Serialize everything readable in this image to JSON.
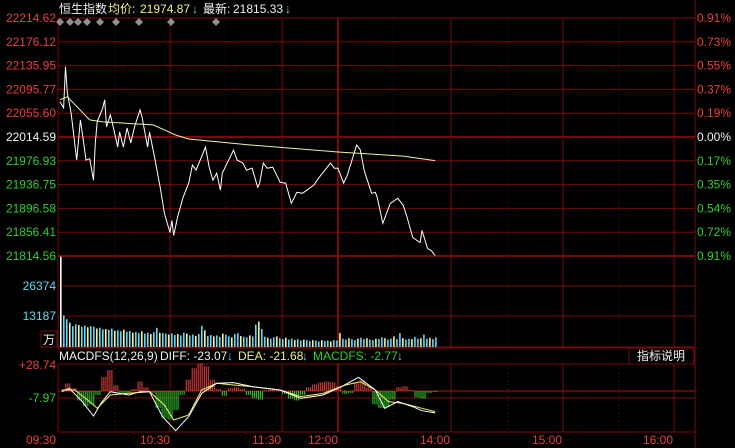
{
  "header": {
    "name": "恒生指数",
    "avg_label": "均价:",
    "avg_value": "21974.87",
    "avg_arrow": "↓",
    "last_label": "最新:",
    "last_value": "21815.33",
    "last_arrow": "↓"
  },
  "price_axis": {
    "left_labels": [
      "22214.62",
      "22176.12",
      "22135.95",
      "22095.77",
      "22055.60",
      "22014.59",
      "21976.93",
      "21936.75",
      "21896.58",
      "21856.41",
      "21814.56"
    ],
    "right_labels": [
      "0.91%",
      "0.73%",
      "0.55%",
      "0.37%",
      "0.19%",
      "0.00%",
      "0.17%",
      "0.35%",
      "0.54%",
      "0.72%",
      "0.91%"
    ],
    "prev_close": 22014.59,
    "range": [
      21814.56,
      22214.62
    ]
  },
  "volume_axis": {
    "labels": [
      "26374",
      "13187"
    ],
    "unit": "万",
    "max": 39561
  },
  "macd": {
    "title": "MACDFS(12,26,9)",
    "diff_label": "DIFF: -23.07",
    "diff_arrow": "↓",
    "dea_label": "DEA: -21.68",
    "dea_arrow": "↓",
    "macdfs_label": "MACDFS: -2.77",
    "macdfs_arrow": "↓",
    "axis_labels": [
      "+28.74",
      "-7.97"
    ],
    "help_button": "指标说明"
  },
  "time_axis": [
    "09:30",
    "10:30",
    "11:30",
    "12:00",
    "14:00",
    "15:00",
    "16:00"
  ],
  "colors": {
    "background": "#000000",
    "grid": "#7a0a0a",
    "price_line": "#ffffff",
    "avg_line": "#f0f0a0",
    "up": "#e84040",
    "down": "#30d030",
    "volume_a": "#60d8f0",
    "volume_b": "#f0f0a0"
  },
  "chart_data": {
    "type": "line",
    "price": [
      [
        "09:31",
        22073.7
      ],
      [
        "09:33",
        22063.6
      ],
      [
        "09:34",
        22132.8
      ],
      [
        "09:35",
        22088.9
      ],
      [
        "09:37",
        22055.1
      ],
      [
        "09:40",
        21975.8
      ],
      [
        "09:42",
        22043.3
      ],
      [
        "09:43",
        22021.4
      ],
      [
        "09:45",
        21975.8
      ],
      [
        "09:47",
        21978.0
      ],
      [
        "09:49",
        21942.0
      ],
      [
        "09:50",
        22004.5
      ],
      [
        "09:51",
        22039.9
      ],
      [
        "09:54",
        22063.6
      ],
      [
        "09:55",
        22077.1
      ],
      [
        "09:56",
        22031.5
      ],
      [
        "09:58",
        22051.8
      ],
      [
        "09:59",
        22039.9
      ],
      [
        "10:02",
        21997.7
      ],
      [
        "10:03",
        22023.0
      ],
      [
        "10:05",
        21997.7
      ],
      [
        "10:07",
        22029.8
      ],
      [
        "10:09",
        22004.5
      ],
      [
        "10:11",
        22031.5
      ],
      [
        "10:14",
        22060.2
      ],
      [
        "10:15",
        22048.4
      ],
      [
        "10:18",
        21997.7
      ],
      [
        "10:19",
        22023.0
      ],
      [
        "10:22",
        21975.8
      ],
      [
        "10:25",
        21925.1
      ],
      [
        "10:27",
        21886.2
      ],
      [
        "10:30",
        21854.1
      ],
      [
        "10:31",
        21874.4
      ],
      [
        "10:32",
        21849.1
      ],
      [
        "10:34",
        21879.5
      ],
      [
        "10:37",
        21913.3
      ],
      [
        "10:40",
        21936.9
      ],
      [
        "10:42",
        21967.3
      ],
      [
        "10:44",
        21958.9
      ],
      [
        "10:49",
        21997.7
      ],
      [
        "10:51",
        21963.9
      ],
      [
        "10:53",
        21942.0
      ],
      [
        "10:55",
        21953.8
      ],
      [
        "10:57",
        21925.1
      ],
      [
        "10:58",
        21953.8
      ],
      [
        "11:04",
        21992.6
      ],
      [
        "11:06",
        21975.8
      ],
      [
        "11:09",
        21970.7
      ],
      [
        "11:11",
        21958.9
      ],
      [
        "11:14",
        21962.2
      ],
      [
        "11:17",
        21930.1
      ],
      [
        "11:18",
        21936.9
      ],
      [
        "11:20",
        21970.7
      ],
      [
        "11:22",
        21962.2
      ],
      [
        "11:25",
        21963.9
      ],
      [
        "11:29",
        21938.6
      ],
      [
        "11:32",
        21936.9
      ],
      [
        "11:35",
        21903.1
      ],
      [
        "11:38",
        21921.7
      ],
      [
        "11:41",
        21920.0
      ],
      [
        "11:47",
        21933.5
      ],
      [
        "11:50",
        21947.0
      ],
      [
        "11:56",
        21970.7
      ],
      [
        "11:58",
        21962.2
      ],
      [
        "13:00",
        21962.2
      ],
      [
        "13:03",
        21936.9
      ],
      [
        "13:05",
        21950.4
      ],
      [
        "13:08",
        21980.8
      ],
      [
        "13:10",
        22001.1
      ],
      [
        "13:12",
        21992.6
      ],
      [
        "13:14",
        21958.9
      ],
      [
        "13:18",
        21920.0
      ],
      [
        "13:20",
        21921.7
      ],
      [
        "13:21",
        21913.3
      ],
      [
        "13:24",
        21869.3
      ],
      [
        "13:28",
        21903.1
      ],
      [
        "13:32",
        21911.6
      ],
      [
        "13:35",
        21899.7
      ],
      [
        "13:37",
        21879.5
      ],
      [
        "13:40",
        21845.7
      ],
      [
        "13:44",
        21837.3
      ],
      [
        "13:45",
        21857.5
      ],
      [
        "13:48",
        21827.1
      ],
      [
        "13:50",
        21823.7
      ],
      [
        "13:52",
        21815.33
      ]
    ],
    "average": [
      [
        "09:31",
        22077.1
      ],
      [
        "09:35",
        22082.2
      ],
      [
        "09:47",
        22043.3
      ],
      [
        "09:54",
        22039.9
      ],
      [
        "10:21",
        22034.9
      ],
      [
        "10:33",
        22018.0
      ],
      [
        "10:40",
        22011.2
      ],
      [
        "11:13",
        22001.1
      ],
      [
        "13:00",
        21989.3
      ],
      [
        "13:35",
        21982.5
      ],
      [
        "13:52",
        21974.87
      ]
    ],
    "volume": {
      "start": "09:30",
      "end": "13:52",
      "values": [
        39100,
        13600,
        12000,
        10500,
        9000,
        9800,
        9500,
        8800,
        9200,
        8500,
        9000,
        8800,
        8000,
        8400,
        7600,
        7800,
        7500,
        8000,
        7000,
        7200,
        6800,
        7500,
        6600,
        6900,
        6200,
        6500,
        6000,
        6800,
        5800,
        6200,
        5600,
        6400,
        8300,
        6200,
        6000,
        5800,
        5400,
        5900,
        5200,
        5600,
        5000,
        6200,
        5800,
        5000,
        5400,
        4800,
        5600,
        9200,
        7200,
        4800,
        5200,
        4600,
        5000,
        4400,
        5800,
        5200,
        4600,
        4200,
        5600,
        6000,
        4800,
        4400,
        4200,
        5000,
        4600,
        9700,
        11000,
        7800,
        4400,
        4000,
        3600,
        4200,
        4600,
        3800,
        3400,
        4000,
        3200,
        3600,
        3000,
        3400,
        2800,
        3200,
        3000,
        2600,
        3000,
        2800,
        2400,
        3000,
        2600,
        2800,
        2400,
        3000,
        2800,
        6100,
        3600,
        3200,
        3800,
        3400,
        3000,
        3600,
        4000,
        3400,
        3800,
        3200,
        3000,
        3600,
        3400,
        4200,
        3800,
        3200,
        3600,
        4600,
        3400,
        6000,
        3800,
        3200,
        3600,
        3400,
        4400,
        3600,
        3800,
        5400,
        3600,
        4000,
        3400,
        4200
      ]
    },
    "macd_hist": {
      "start": "09:32",
      "end": "13:52",
      "values": [
        0,
        8,
        3,
        -10,
        -16,
        -14,
        -4,
        15,
        22,
        6,
        -3,
        -2,
        2,
        10,
        4,
        -2,
        -18,
        -28,
        -30,
        -20,
        -4,
        12,
        24,
        29,
        26,
        12,
        2,
        -5,
        3,
        4,
        2,
        -4,
        -8,
        -9,
        1,
        2,
        1,
        -3,
        -8,
        -10,
        -4,
        4,
        7,
        9,
        10,
        9,
        5,
        -3,
        -2,
        8,
        11,
        4,
        -14,
        -18,
        -17,
        -9,
        4,
        5,
        1,
        -7,
        -8,
        -2,
        -1
      ]
    },
    "diff": [
      [
        "09:32",
        -0.7
      ],
      [
        "09:36",
        2.8
      ],
      [
        "09:43",
        -11.2
      ],
      [
        "09:49",
        -26.3
      ],
      [
        "09:53",
        -13.0
      ],
      [
        "09:58",
        -0.7
      ],
      [
        "10:08",
        -4.2
      ],
      [
        "10:14",
        -0.7
      ],
      [
        "10:19",
        -0.7
      ],
      [
        "10:26",
        -27.0
      ],
      [
        "10:33",
        -41.8
      ],
      [
        "10:40",
        -27.0
      ],
      [
        "10:47",
        -2.5
      ],
      [
        "10:55",
        8.1
      ],
      [
        "11:04",
        8.8
      ],
      [
        "11:14",
        4.6
      ],
      [
        "11:29",
        1.1
      ],
      [
        "11:40",
        -7.7
      ],
      [
        "11:52",
        -4.2
      ],
      [
        "13:02",
        4.6
      ],
      [
        "13:11",
        14.4
      ],
      [
        "13:20",
        1.1
      ],
      [
        "13:25",
        -18.2
      ],
      [
        "13:32",
        -11.2
      ],
      [
        "13:40",
        -16.5
      ],
      [
        "13:45",
        -20.7
      ],
      [
        "13:52",
        -23.07
      ]
    ],
    "dea": [
      [
        "09:32",
        1.1
      ],
      [
        "09:39",
        1.1
      ],
      [
        "09:47",
        -11.2
      ],
      [
        "09:51",
        -18.2
      ],
      [
        "09:58",
        -4.2
      ],
      [
        "10:07",
        -2.5
      ],
      [
        "10:19",
        -0.7
      ],
      [
        "10:27",
        -14.7
      ],
      [
        "10:32",
        -30.5
      ],
      [
        "10:40",
        -25.3
      ],
      [
        "10:47",
        1.1
      ],
      [
        "10:55",
        8.1
      ],
      [
        "11:04",
        6.3
      ],
      [
        "11:14",
        4.6
      ],
      [
        "11:29",
        1.1
      ],
      [
        "11:40",
        -5.9
      ],
      [
        "11:52",
        -2.5
      ],
      [
        "13:04",
        6.3
      ],
      [
        "13:12",
        9.8
      ],
      [
        "13:20",
        1.1
      ],
      [
        "13:27",
        -11.2
      ],
      [
        "13:35",
        -13.0
      ],
      [
        "13:45",
        -18.2
      ],
      [
        "13:52",
        -21.68
      ]
    ]
  }
}
